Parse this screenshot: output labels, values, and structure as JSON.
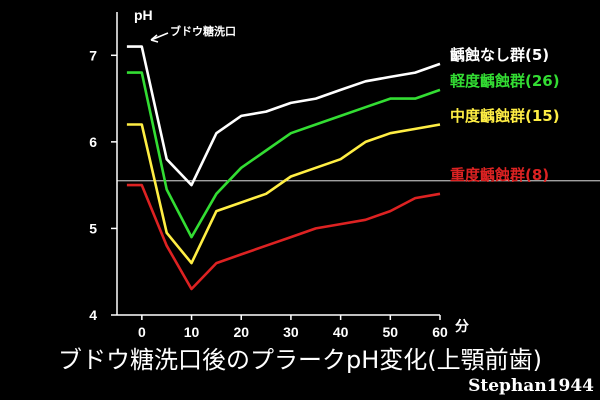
{
  "chart_data": {
    "type": "line",
    "title": "ブドウ糖洗口後のプラークpH変化(上顎前歯)",
    "ylabel": "pH",
    "xlabel": "分",
    "ylim": [
      4,
      7.5
    ],
    "xlim": [
      -5,
      60
    ],
    "yticks": [
      "4",
      "5",
      "6",
      "7"
    ],
    "yticks_values": [
      4,
      5,
      6,
      7
    ],
    "xticks": [
      "0",
      "10",
      "20",
      "30",
      "40",
      "50",
      "60"
    ],
    "xticks_values": [
      0,
      10,
      20,
      30,
      40,
      50,
      60
    ],
    "grid": false,
    "reference_line": {
      "y": 5.55,
      "color": "#ffffff"
    },
    "annotation": {
      "text": "ブドウ糖洗口",
      "x": 0,
      "y": 7.1
    },
    "series": [
      {
        "name": "齲蝕なし群(5)",
        "color": "#ffffff",
        "points": [
          [
            -3,
            7.1
          ],
          [
            0,
            7.1
          ],
          [
            5,
            5.8
          ],
          [
            10,
            5.5
          ],
          [
            15,
            6.1
          ],
          [
            20,
            6.3
          ],
          [
            25,
            6.35
          ],
          [
            30,
            6.45
          ],
          [
            35,
            6.5
          ],
          [
            40,
            6.6
          ],
          [
            45,
            6.7
          ],
          [
            50,
            6.75
          ],
          [
            55,
            6.8
          ],
          [
            60,
            6.9
          ]
        ]
      },
      {
        "name": "軽度齲蝕群(26)",
        "color": "#33dd33",
        "points": [
          [
            -3,
            6.8
          ],
          [
            0,
            6.8
          ],
          [
            5,
            5.45
          ],
          [
            10,
            4.9
          ],
          [
            15,
            5.4
          ],
          [
            20,
            5.7
          ],
          [
            25,
            5.9
          ],
          [
            30,
            6.1
          ],
          [
            35,
            6.2
          ],
          [
            40,
            6.3
          ],
          [
            45,
            6.4
          ],
          [
            50,
            6.5
          ],
          [
            55,
            6.5
          ],
          [
            60,
            6.6
          ]
        ]
      },
      {
        "name": "中度齲蝕群(15)",
        "color": "#ffee44",
        "points": [
          [
            -3,
            6.2
          ],
          [
            0,
            6.2
          ],
          [
            5,
            4.95
          ],
          [
            10,
            4.6
          ],
          [
            15,
            5.2
          ],
          [
            20,
            5.3
          ],
          [
            25,
            5.4
          ],
          [
            30,
            5.6
          ],
          [
            35,
            5.7
          ],
          [
            40,
            5.8
          ],
          [
            45,
            6.0
          ],
          [
            50,
            6.1
          ],
          [
            55,
            6.15
          ],
          [
            60,
            6.2
          ]
        ]
      },
      {
        "name": "重度齲蝕群(8)",
        "color": "#dd2222",
        "points": [
          [
            -3,
            5.5
          ],
          [
            0,
            5.5
          ],
          [
            5,
            4.8
          ],
          [
            10,
            4.3
          ],
          [
            15,
            4.6
          ],
          [
            20,
            4.7
          ],
          [
            25,
            4.8
          ],
          [
            30,
            4.9
          ],
          [
            35,
            5.0
          ],
          [
            40,
            5.05
          ],
          [
            45,
            5.1
          ],
          [
            50,
            5.2
          ],
          [
            55,
            5.35
          ],
          [
            60,
            5.4
          ]
        ]
      }
    ]
  },
  "credit": "Stephan1944"
}
